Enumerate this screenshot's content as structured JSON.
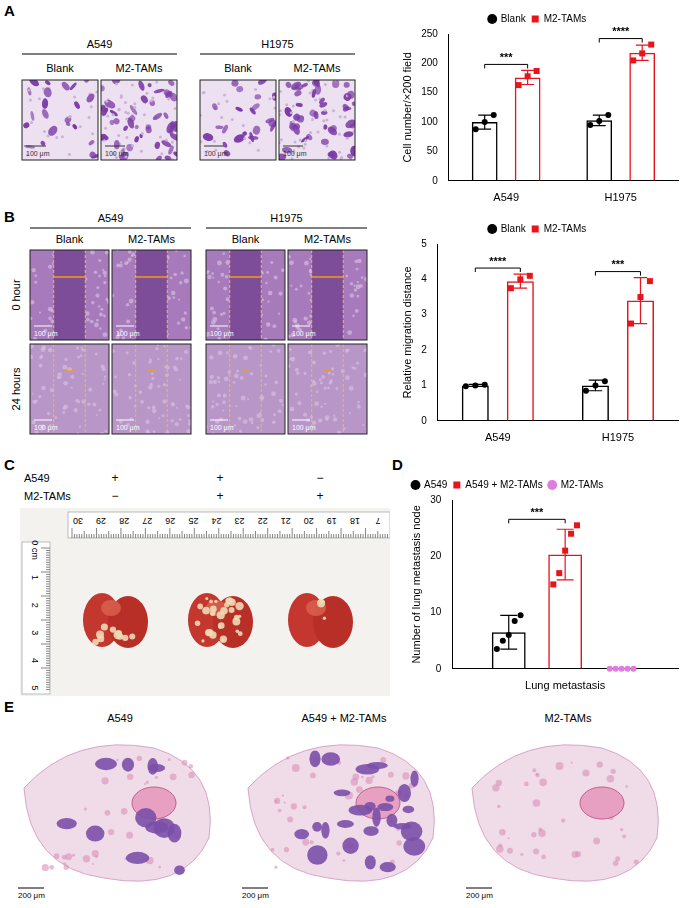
{
  "figure": {
    "panel_labels": [
      "A",
      "B",
      "C",
      "D",
      "E"
    ],
    "A": {
      "groups": [
        {
          "title": "A549",
          "images": [
            "Blank",
            "M2-TAMs"
          ]
        },
        {
          "title": "H1975",
          "images": [
            "Blank",
            "M2-TAMs"
          ]
        }
      ],
      "scale_bar": "100 μm"
    },
    "B": {
      "groups": [
        {
          "title": "A549",
          "images": [
            "Blank",
            "M2-TAMs"
          ]
        },
        {
          "title": "H1975",
          "images": [
            "Blank",
            "M2-TAMs"
          ]
        }
      ],
      "rows": [
        "0 hour",
        "24 hours"
      ],
      "scale_bar": "100 μm"
    },
    "C": {
      "rows": [
        {
          "label": "A549",
          "marks": [
            "+",
            "+",
            "−"
          ]
        },
        {
          "label": "M2-TAMs",
          "marks": [
            "−",
            "+",
            "+"
          ]
        }
      ],
      "ruler_top": [
        "30",
        "29",
        "28",
        "27",
        "26",
        "25",
        "24",
        "23",
        "22",
        "21",
        "20",
        "19",
        "18",
        "7"
      ],
      "ruler_left": [
        "0 cm",
        "1",
        "2",
        "3",
        "4",
        "5"
      ]
    },
    "E": {
      "images": [
        "A549",
        "A549 + M2-TAMs",
        "M2-TAMs"
      ],
      "scale_bar": "200 μm"
    }
  },
  "chart_data": [
    {
      "type": "bar",
      "y_label": "Cell number/×200 field",
      "categories": [
        "A549",
        "H1975"
      ],
      "series": [
        {
          "name": "Blank",
          "color": "#000000",
          "marker": "circle",
          "values": [
            100,
            103
          ],
          "errors": [
            12,
            9
          ],
          "points": [
            [
              88,
              100,
              112
            ],
            [
              95,
              102,
              112
            ]
          ]
        },
        {
          "name": "M2-TAMs",
          "color": "#e8141b",
          "marker": "square",
          "values": [
            176,
            218
          ],
          "errors": [
            12,
            13
          ],
          "points": [
            [
              163,
              178,
              187
            ],
            [
              205,
              217,
              232
            ]
          ]
        }
      ],
      "ylim": [
        0,
        250
      ],
      "yticks": [
        0,
        50,
        100,
        150,
        200,
        250
      ],
      "grid": false,
      "legend": "top",
      "significance": [
        {
          "category": "A549",
          "between": [
            "Blank",
            "M2-TAMs"
          ],
          "label": "***"
        },
        {
          "category": "H1975",
          "between": [
            "Blank",
            "M2-TAMs"
          ],
          "label": "****"
        }
      ]
    },
    {
      "type": "bar",
      "y_label": "Relative migration distance",
      "categories": [
        "A549",
        "H1975"
      ],
      "series": [
        {
          "name": "Blank",
          "color": "#000000",
          "marker": "circle",
          "values": [
            1,
            1
          ],
          "errors": [
            0.03,
            0.15
          ],
          "points": [
            [
              0.98,
              1,
              1.02
            ],
            [
              0.85,
              1,
              1.12
            ]
          ]
        },
        {
          "name": "M2-TAMs",
          "color": "#e8141b",
          "marker": "square",
          "values": [
            3.95,
            3.4
          ],
          "errors": [
            0.2,
            0.65
          ],
          "points": [
            [
              3.75,
              4,
              4.1
            ],
            [
              2.75,
              3.5,
              3.95
            ]
          ]
        }
      ],
      "ylim": [
        0,
        5
      ],
      "yticks": [
        0,
        1,
        2,
        3,
        4,
        5
      ],
      "grid": false,
      "legend": "top",
      "significance": [
        {
          "category": "A549",
          "between": [
            "Blank",
            "M2-TAMs"
          ],
          "label": "****"
        },
        {
          "category": "H1975",
          "between": [
            "Blank",
            "M2-TAMs"
          ],
          "label": "***"
        }
      ]
    },
    {
      "type": "bar",
      "y_label": "Number of lung metastasis node",
      "categories": [
        "Lung metastasis"
      ],
      "series": [
        {
          "name": "A549",
          "color": "#000000",
          "marker": "circle",
          "values": [
            6.5
          ],
          "errors": [
            3
          ],
          "points": [
            [
              3.5,
              5,
              6,
              8.5,
              9.5
            ]
          ]
        },
        {
          "name": "A549 + M2-TAMs",
          "color": "#e8141b",
          "marker": "square",
          "values": [
            20.3
          ],
          "errors": [
            4.5
          ],
          "points": [
            [
              15,
              17,
              21,
              24,
              25.5
            ]
          ]
        },
        {
          "name": "M2-TAMs",
          "color": "#e07be0",
          "marker": "circle",
          "values": [
            0
          ],
          "errors": [
            0
          ],
          "points": [
            [
              0,
              0,
              0,
              0,
              0
            ]
          ]
        }
      ],
      "ylim": [
        0,
        30
      ],
      "yticks": [
        0,
        10,
        20,
        30
      ],
      "grid": false,
      "legend": "top-left",
      "significance": [
        {
          "category": "Lung metastasis",
          "between": [
            "A549",
            "A549 + M2-TAMs"
          ],
          "label": "***"
        }
      ]
    }
  ]
}
